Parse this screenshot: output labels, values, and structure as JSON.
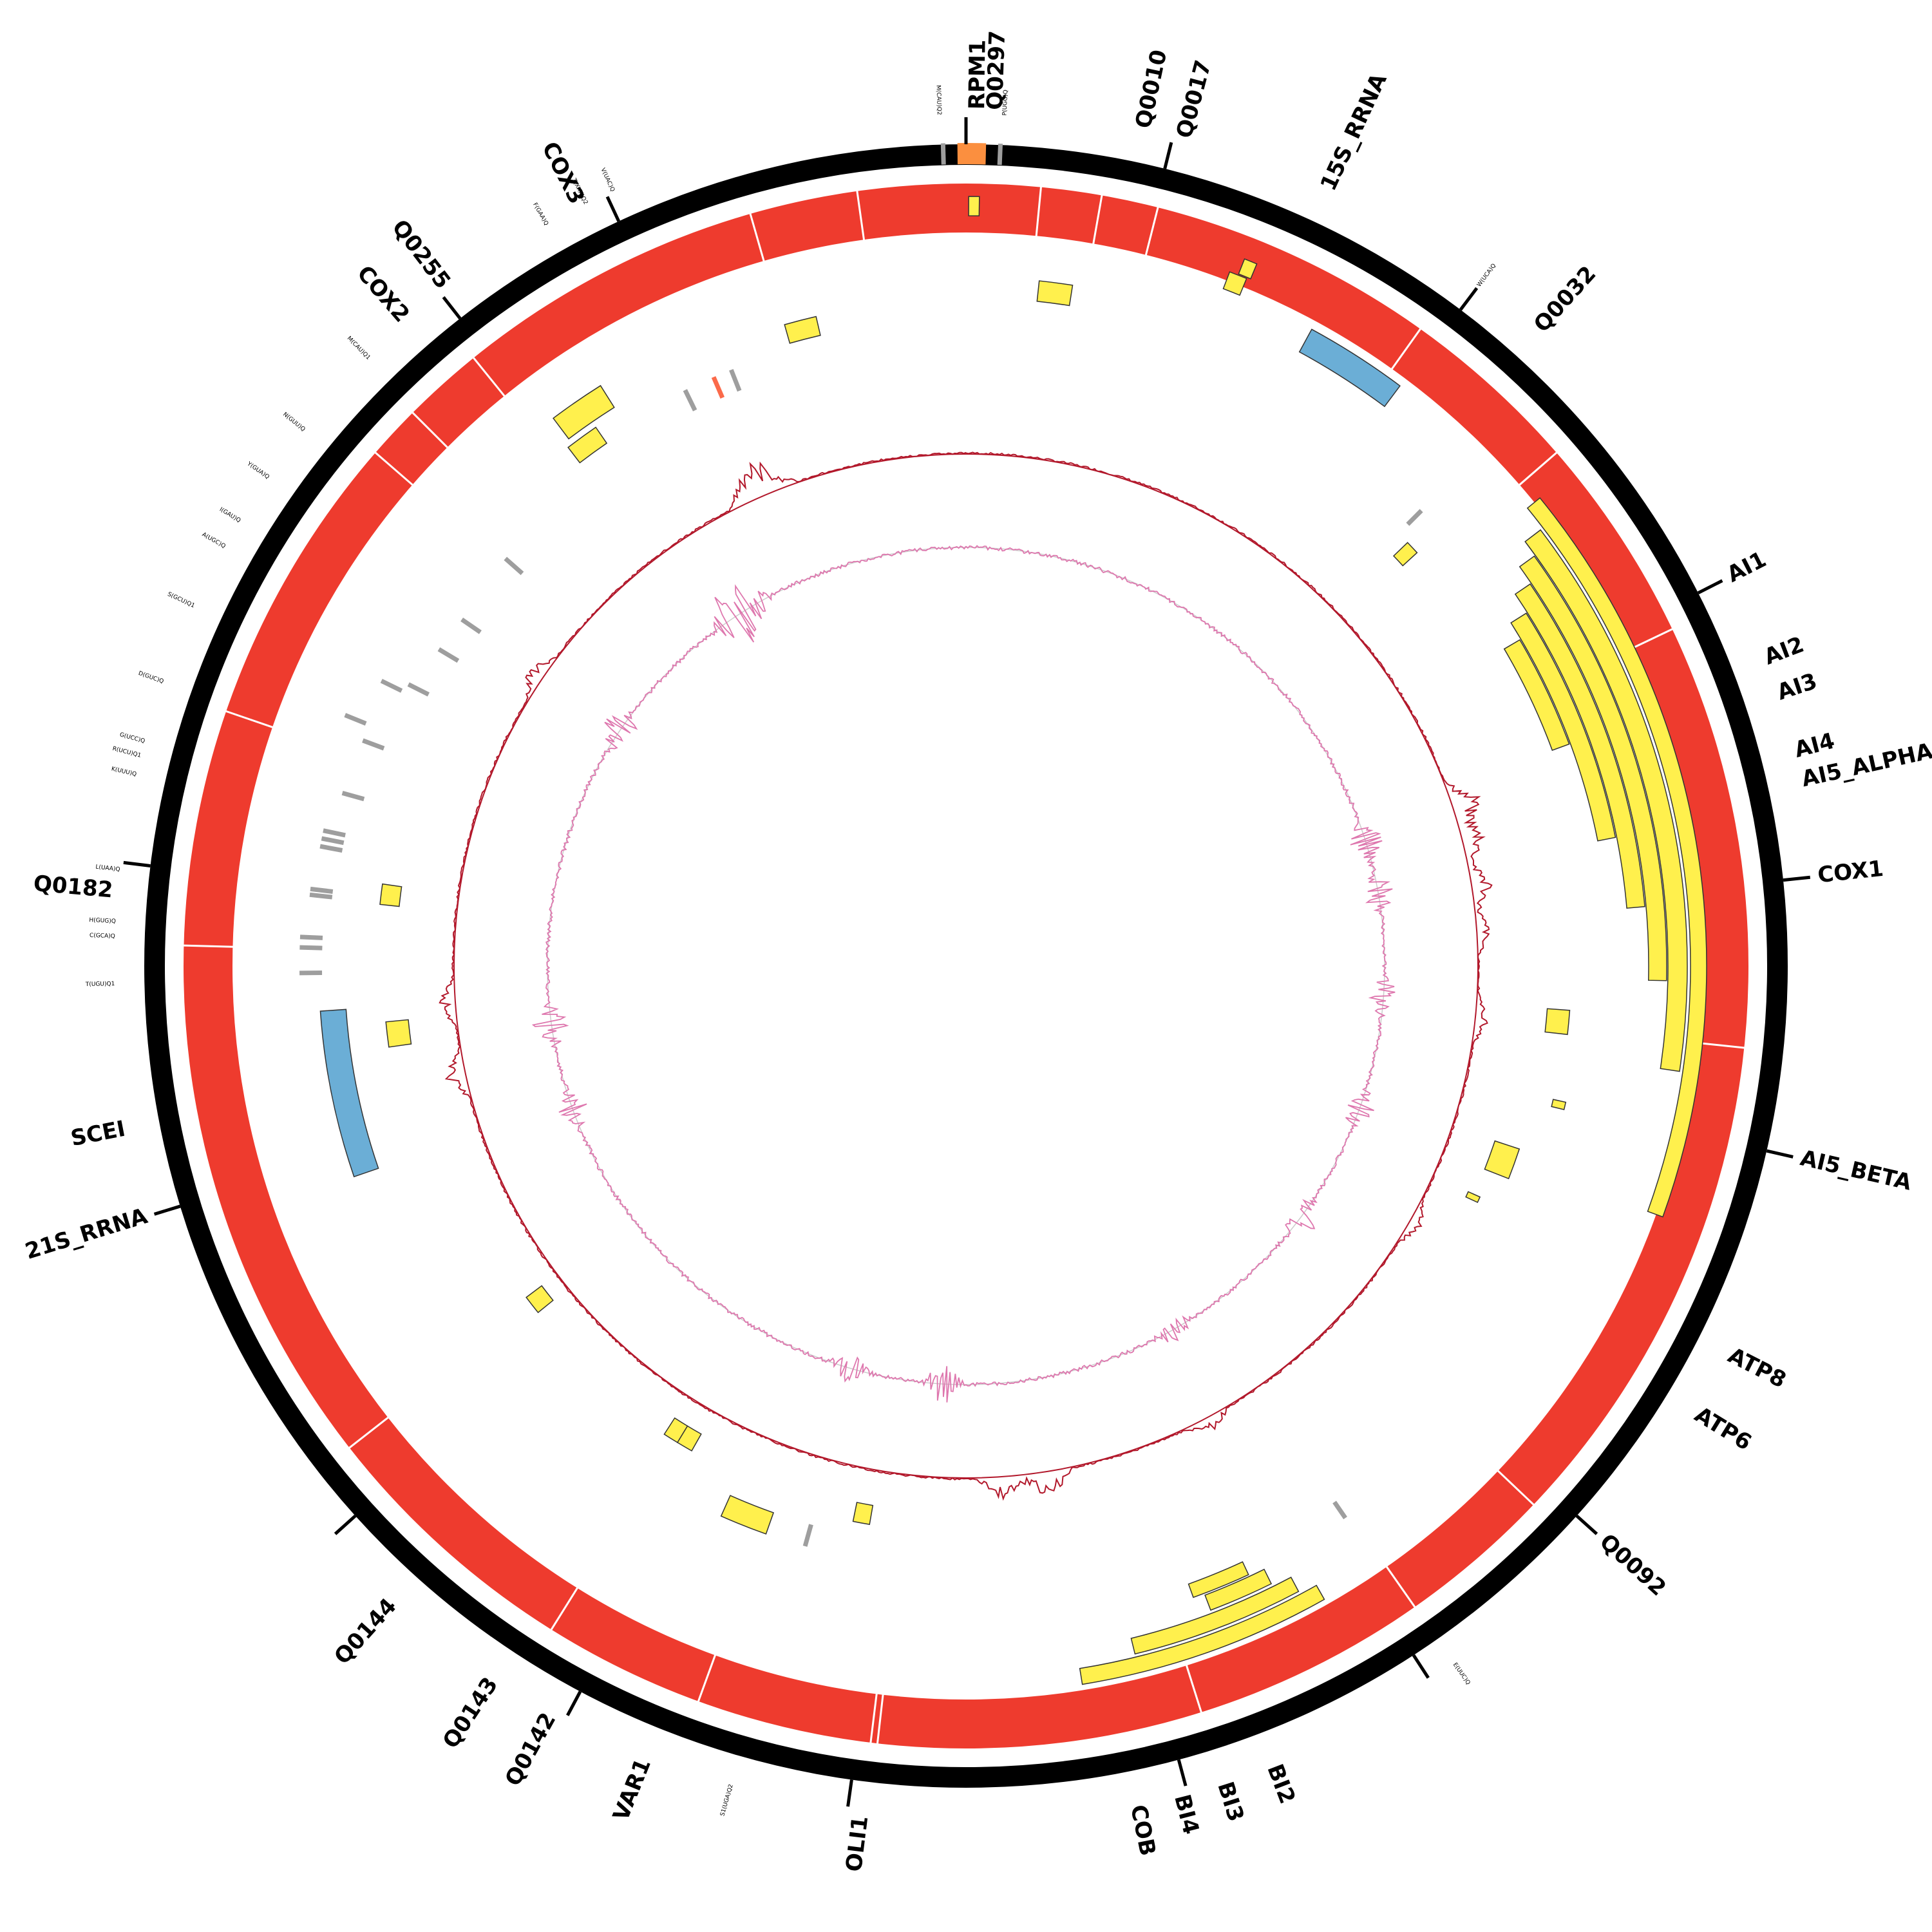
{
  "colors": {
    "backbone": "#000000",
    "coverage": "#ee3b2e",
    "gene": "#fff04d",
    "rrna": "#6baed6",
    "trna": "#9e9e9e",
    "orf_highlight": "#fb8f3f",
    "trna_highlight": "#fb6a4a",
    "gc_skew": "#b2182b",
    "gc_content": "#de77ae"
  },
  "gene_labels": [
    {
      "text": "Q0297",
      "angle": 2
    },
    {
      "text": "RPM1",
      "angle": 0.8
    },
    {
      "text": "Q0010",
      "angle": 12
    },
    {
      "text": "Q0017",
      "angle": 14.8
    },
    {
      "text": "15S_RRNA",
      "angle": 25
    },
    {
      "text": "Q0032",
      "angle": 42
    },
    {
      "text": "AI1",
      "angle": 63
    },
    {
      "text": "AI2",
      "angle": 69
    },
    {
      "text": "AI3",
      "angle": 71.5
    },
    {
      "text": "AI4",
      "angle": 75.5
    },
    {
      "text": "AI5_ALPHA",
      "angle": 77.5
    },
    {
      "text": "COX1",
      "angle": 84
    },
    {
      "text": "AI5_BETA",
      "angle": 103
    },
    {
      "text": "ATP8",
      "angle": 117
    },
    {
      "text": "ATP6",
      "angle": 121.5
    },
    {
      "text": "Q0092",
      "angle": 132
    },
    {
      "text": "BI2",
      "angle": 159
    },
    {
      "text": "BI3",
      "angle": 162.5
    },
    {
      "text": "BI4",
      "angle": 165.5
    },
    {
      "text": "COB",
      "angle": 168.5
    },
    {
      "text": "OLI1",
      "angle": 187
    },
    {
      "text": "VAR1",
      "angle": 202
    },
    {
      "text": "Q0142",
      "angle": 209
    },
    {
      "text": "Q0143",
      "angle": 213.5
    },
    {
      "text": "Q0144",
      "angle": 222
    },
    {
      "text": "21S_RRNA",
      "angle": 253
    },
    {
      "text": "SCEI",
      "angle": 259
    },
    {
      "text": "Q0182",
      "angle": 275
    },
    {
      "text": "COX2",
      "angle": 319
    },
    {
      "text": "Q0255",
      "angle": 322.5
    },
    {
      "text": "COX3",
      "angle": 333
    }
  ],
  "trna_labels": [
    {
      "text": "M(CAU)Q2",
      "angle": -1.8
    },
    {
      "text": "P(UGG)Q",
      "angle": 2.6
    },
    {
      "text": "W(UCA)Q",
      "angle": 37
    },
    {
      "text": "E(UUC)Q",
      "angle": 145
    },
    {
      "text": "S1(UGA)Q2",
      "angle": 196
    },
    {
      "text": "T(UGU)Q1",
      "angle": 268.8
    },
    {
      "text": "C(GCA)Q",
      "angle": 272
    },
    {
      "text": "H(GUG)Q",
      "angle": 273
    },
    {
      "text": "L(UAA)Q",
      "angle": 276.5
    },
    {
      "text": "K(UUU)Q",
      "angle": 283
    },
    {
      "text": "R(UCU)Q1",
      "angle": 284.3
    },
    {
      "text": "G(UCC)Q",
      "angle": 285.3
    },
    {
      "text": "D(GUC)Q",
      "angle": 289.5
    },
    {
      "text": "S(GCU)Q1",
      "angle": 295
    },
    {
      "text": "A(UGC)Q",
      "angle": 299.5
    },
    {
      "text": "I(GAU)Q",
      "angle": 301.5
    },
    {
      "text": "Y(GUA)Q",
      "angle": 305
    },
    {
      "text": "N(GUU)Q",
      "angle": 309
    },
    {
      "text": "M(CAU)Q1",
      "angle": 315.5
    },
    {
      "text": "F(GAA)Q",
      "angle": 330.5
    },
    {
      "text": "T(XXX)Q2",
      "angle": 333.5
    },
    {
      "text": "V(UAC)Q",
      "angle": 335.5
    }
  ],
  "ticks": [
    0,
    14,
    37,
    63,
    84,
    103,
    132,
    147,
    165,
    188,
    208,
    228,
    253,
    277,
    322,
    335
  ],
  "coverage_gaps": [
    5.5,
    10,
    14.2,
    35.5,
    49,
    64.5,
    96,
    133.5,
    145,
    162.5,
    186.5,
    187,
    200,
    212,
    232,
    271.5,
    289,
    311,
    315,
    321,
    344,
    352
  ],
  "features": [
    {
      "type": "gene",
      "start": 6.1,
      "end": 8.9,
      "r1": 1038,
      "r2": 1070
    },
    {
      "type": "gene",
      "start": 0.2,
      "end": 1.0,
      "r1": 1165,
      "r2": 1195
    },
    {
      "type": "gene",
      "start": 21.5,
      "end": 22.5,
      "r1": 1155,
      "r2": 1180
    },
    {
      "type": "gene",
      "start": 20.8,
      "end": 22.2,
      "r1": 1125,
      "r2": 1153
    },
    {
      "type": "rrna",
      "start": 28.5,
      "end": 36.8,
      "r1": 1085,
      "r2": 1125
    },
    {
      "type": "gene",
      "start": 46.2,
      "end": 47.5,
      "r1": 920,
      "r2": 950
    },
    {
      "type": "gene",
      "start": 50.8,
      "end": 109.8,
      "r1": 1125,
      "r2": 1150
    },
    {
      "type": "gene",
      "start": 52.8,
      "end": 98.4,
      "r1": 1090,
      "r2": 1120
    },
    {
      "type": "gene",
      "start": 54.2,
      "end": 91.2,
      "r1": 1060,
      "r2": 1088
    },
    {
      "type": "gene",
      "start": 55.9,
      "end": 85.0,
      "r1": 1030,
      "r2": 1058
    },
    {
      "type": "gene",
      "start": 57.8,
      "end": 78.8,
      "r1": 1000,
      "r2": 1028
    },
    {
      "type": "gene",
      "start": 59.5,
      "end": 69.8,
      "r1": 970,
      "r2": 998
    },
    {
      "type": "gene",
      "start": 94.2,
      "end": 96.5,
      "r1": 905,
      "r2": 940
    },
    {
      "type": "gene",
      "start": 102.8,
      "end": 103.5,
      "r1": 935,
      "r2": 955
    },
    {
      "type": "gene",
      "start": 108.3,
      "end": 111.4,
      "r1": 865,
      "r2": 905
    },
    {
      "type": "gene",
      "start": 114.2,
      "end": 114.8,
      "r1": 855,
      "r2": 875
    },
    {
      "type": "gene",
      "start": 150.5,
      "end": 170.8,
      "r1": 1105,
      "r2": 1130
    },
    {
      "type": "gene",
      "start": 152.0,
      "end": 166.2,
      "r1": 1075,
      "r2": 1100
    },
    {
      "type": "gene",
      "start": 153.7,
      "end": 159.2,
      "r1": 1045,
      "r2": 1070
    },
    {
      "type": "gene",
      "start": 155.1,
      "end": 160.2,
      "r1": 1020,
      "r2": 1042
    },
    {
      "type": "gene",
      "start": 189.8,
      "end": 191.5,
      "r1": 850,
      "r2": 880
    },
    {
      "type": "gene",
      "start": 199.4,
      "end": 204.0,
      "r1": 900,
      "r2": 935
    },
    {
      "type": "gene",
      "start": 209.5,
      "end": 211.2,
      "r1": 835,
      "r2": 865
    },
    {
      "type": "gene",
      "start": 211.2,
      "end": 212.8,
      "r1": 835,
      "r2": 865
    },
    {
      "type": "gene",
      "start": 231.0,
      "end": 233.0,
      "r1": 825,
      "r2": 855
    },
    {
      "type": "rrna",
      "start": 251.0,
      "end": 266.0,
      "r1": 965,
      "r2": 1005
    },
    {
      "type": "gene",
      "start": 262.0,
      "end": 264.5,
      "r1": 870,
      "r2": 905
    },
    {
      "type": "gene",
      "start": 276.0,
      "end": 278.0,
      "r1": 885,
      "r2": 915
    },
    {
      "type": "gene",
      "start": 322.5,
      "end": 325.5,
      "r1": 985,
      "r2": 1015
    },
    {
      "type": "gene",
      "start": 323.0,
      "end": 327.8,
      "r1": 1025,
      "r2": 1065
    },
    {
      "type": "gene",
      "start": 344.2,
      "end": 347.0,
      "r1": 1005,
      "r2": 1035
    },
    {
      "type": "orf",
      "start": -0.6,
      "end": 1.4,
      "r1": 1245,
      "r2": 1278
    },
    {
      "type": "trna",
      "angle": -1.6,
      "r1": 1245,
      "r2": 1278
    },
    {
      "type": "trna",
      "angle": 2.4,
      "r1": 1245,
      "r2": 1278
    },
    {
      "type": "trna",
      "angle": 45,
      "r1": 970,
      "r2": 1000
    },
    {
      "type": "trna",
      "angle": 145.5,
      "r1": 1010,
      "r2": 1040
    },
    {
      "type": "trna",
      "angle": 195.5,
      "r1": 900,
      "r2": 935
    },
    {
      "type": "trna",
      "angle": 269.4,
      "r1": 1000,
      "r2": 1035
    },
    {
      "type": "trna",
      "angle": 271.6,
      "r1": 1000,
      "r2": 1035
    },
    {
      "type": "trna",
      "angle": 272.5,
      "r1": 1000,
      "r2": 1035
    },
    {
      "type": "trna",
      "angle": 276.2,
      "r1": 990,
      "r2": 1025
    },
    {
      "type": "trna",
      "angle": 276.7,
      "r1": 990,
      "r2": 1025
    },
    {
      "type": "trna",
      "angle": 280.5,
      "r1": 985,
      "r2": 1020
    },
    {
      "type": "trna",
      "angle": 281.2,
      "r1": 985,
      "r2": 1020
    },
    {
      "type": "trna",
      "angle": 281.9,
      "r1": 985,
      "r2": 1020
    },
    {
      "type": "trna",
      "angle": 285.5,
      "r1": 970,
      "r2": 1005
    },
    {
      "type": "trna",
      "angle": 290.5,
      "r1": 965,
      "r2": 1000
    },
    {
      "type": "trna",
      "angle": 292.0,
      "r1": 1005,
      "r2": 1040
    },
    {
      "type": "trna",
      "angle": 296.0,
      "r1": 975,
      "r2": 1010
    },
    {
      "type": "trna",
      "angle": 296.8,
      "r1": 935,
      "r2": 970
    },
    {
      "type": "trna",
      "angle": 301.0,
      "r1": 920,
      "r2": 955
    },
    {
      "type": "trna",
      "angle": 304.5,
      "r1": 915,
      "r2": 950
    },
    {
      "type": "trna",
      "angle": 311.5,
      "r1": 920,
      "r2": 955
    },
    {
      "type": "trna",
      "angle": 334.0,
      "r1": 960,
      "r2": 995
    },
    {
      "type": "trna_hl",
      "angle": 336.8,
      "r1": 960,
      "r2": 995
    },
    {
      "type": "trna",
      "angle": 338.5,
      "r1": 960,
      "r2": 995
    }
  ],
  "skew_peaks": [
    {
      "angle": 335.5,
      "amp": 45
    },
    {
      "angle": 338,
      "amp": 30
    },
    {
      "angle": 304,
      "amp": 25
    },
    {
      "angle": 72,
      "amp": 40
    },
    {
      "angle": 76,
      "amp": 35
    },
    {
      "angle": 81,
      "amp": 30
    },
    {
      "angle": 86,
      "amp": 18
    },
    {
      "angle": 96,
      "amp": 18
    },
    {
      "angle": 120,
      "amp": 18
    },
    {
      "angle": 152,
      "amp": 20
    },
    {
      "angle": 171,
      "amp": 40
    },
    {
      "angle": 176,
      "amp": 30
    },
    {
      "angle": 258,
      "amp": 28
    },
    {
      "angle": 266,
      "amp": 22
    }
  ],
  "gc_peaks": [
    {
      "angle": 326,
      "amp": 35
    },
    {
      "angle": 329,
      "amp": 25
    },
    {
      "angle": 304,
      "amp": 28
    },
    {
      "angle": 73,
      "amp": 25
    },
    {
      "angle": 80,
      "amp": 22
    },
    {
      "angle": 94,
      "amp": 18
    },
    {
      "angle": 110,
      "amp": 20
    },
    {
      "angle": 127,
      "amp": 20
    },
    {
      "angle": 150,
      "amp": 16
    },
    {
      "angle": 183,
      "amp": 25
    },
    {
      "angle": 196,
      "amp": 20
    },
    {
      "angle": 262,
      "amp": 25
    },
    {
      "angle": 250,
      "amp": 18
    }
  ]
}
